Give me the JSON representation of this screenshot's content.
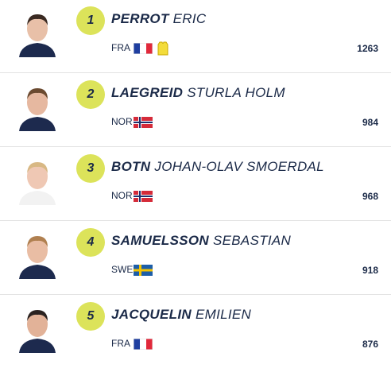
{
  "rows": [
    {
      "rank": 1,
      "last_name": "PERROT",
      "first_name": "ERIC",
      "country": "FRA",
      "points": 1263
    },
    {
      "rank": 2,
      "last_name": "LAEGREID",
      "first_name": "STURLA HOLM",
      "country": "NOR",
      "points": 984
    },
    {
      "rank": 3,
      "last_name": "BOTN",
      "first_name": "JOHAN-OLAV SMOERDAL",
      "country": "NOR",
      "points": 968
    },
    {
      "rank": 4,
      "last_name": "SAMUELSSON",
      "first_name": "SEBASTIAN",
      "country": "SWE",
      "points": 918
    },
    {
      "rank": 5,
      "last_name": "JACQUELIN",
      "first_name": "EMILIEN",
      "country": "FRA",
      "points": 876
    }
  ]
}
